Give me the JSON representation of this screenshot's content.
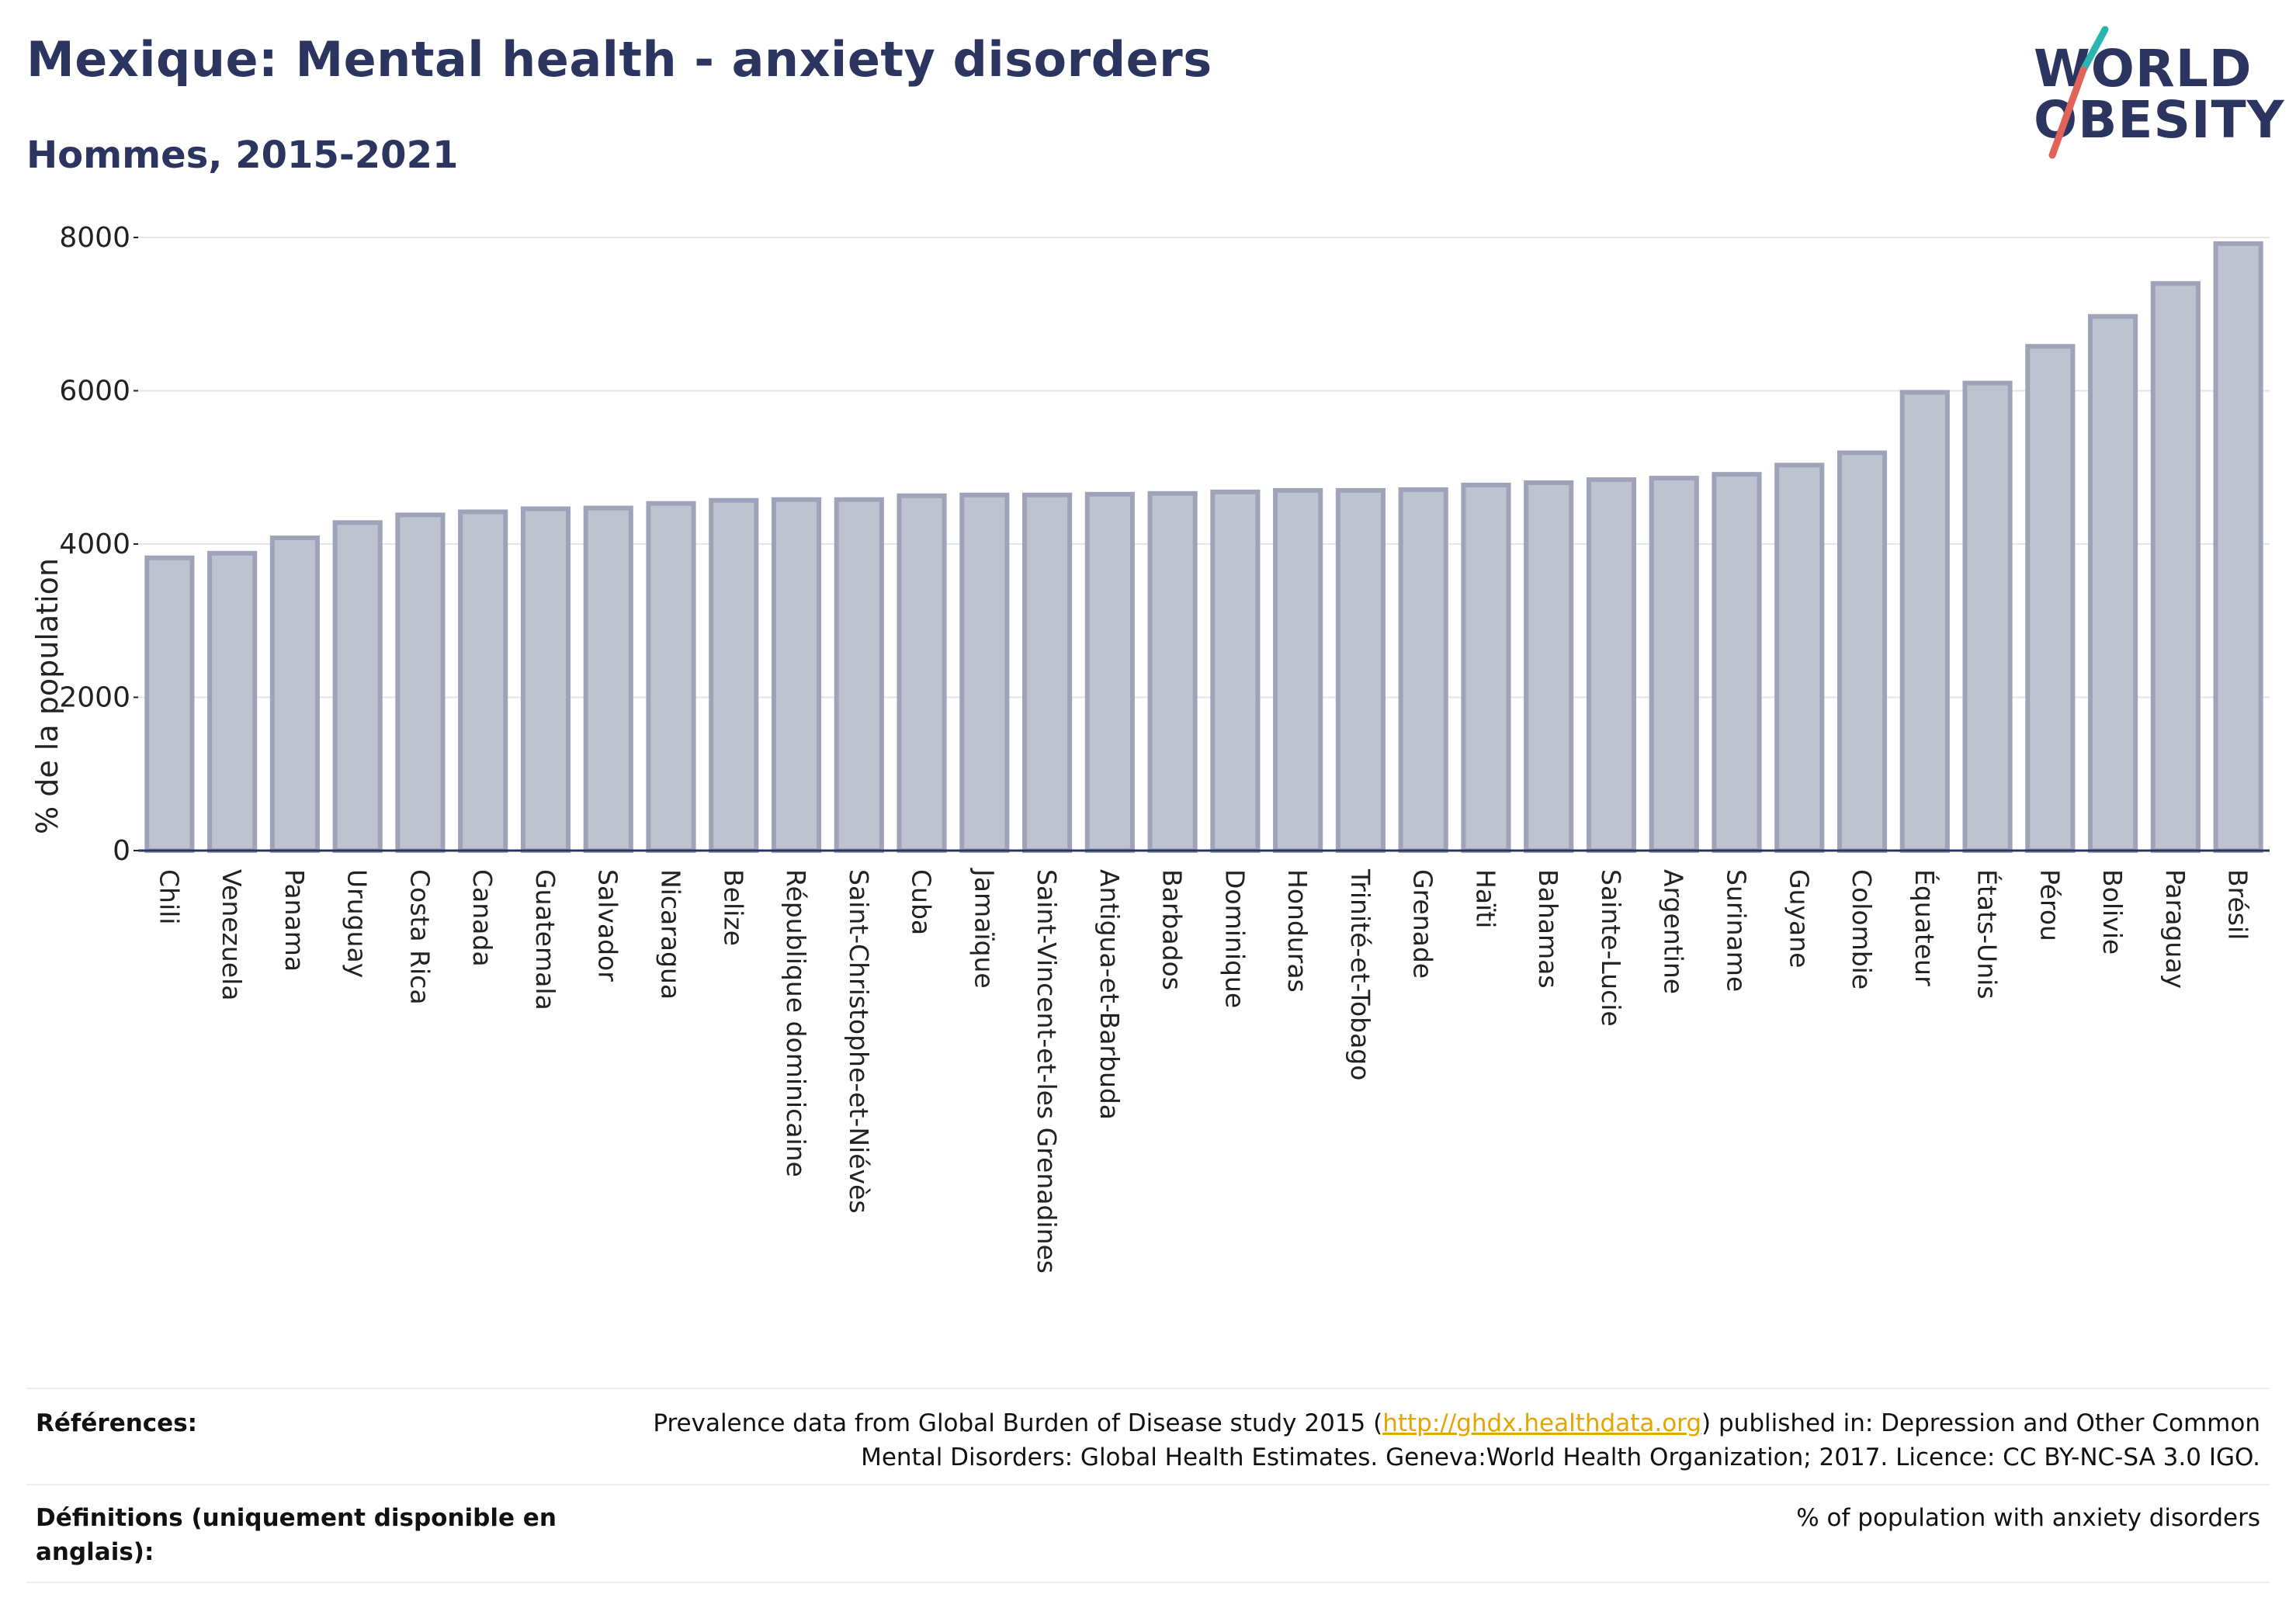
{
  "title": "Mexique: Mental health - anxiety disorders",
  "subtitle": "Hommes, 2015-2021",
  "logo": {
    "line1": "WORLD",
    "line2": "OBESITY",
    "colors": [
      "#2bb5b0",
      "#e0645a"
    ]
  },
  "chart_data": {
    "type": "bar",
    "ylabel": "% de la population",
    "ylim": [
      0,
      8000
    ],
    "yticks": [
      0,
      2000,
      4000,
      6000,
      8000
    ],
    "grid": true,
    "bar_color": "#bfc3d0",
    "bar_edge_color": "#9ea3b9",
    "categories": [
      "Chili",
      "Venezuela",
      "Panama",
      "Uruguay",
      "Costa Rica",
      "Canada",
      "Guatemala",
      "Salvador",
      "Nicaragua",
      "Belize",
      "République dominicaine",
      "Saint-Christophe-et-Niévès",
      "Cuba",
      "Jamaïque",
      "Saint-Vincent-et-les Grenadines",
      "Antigua-et-Barbuda",
      "Barbados",
      "Dominique",
      "Honduras",
      "Trinité-et-Tobago",
      "Grenade",
      "Haïti",
      "Bahamas",
      "Sainte-Lucie",
      "Argentine",
      "Suriname",
      "Guyane",
      "Colombie",
      "Équateur",
      "États-Unis",
      "Pérou",
      "Bolivie",
      "Paraguay",
      "Brésil"
    ],
    "values": [
      3820,
      3880,
      4080,
      4280,
      4380,
      4420,
      4460,
      4470,
      4530,
      4570,
      4580,
      4580,
      4630,
      4640,
      4640,
      4650,
      4660,
      4680,
      4700,
      4700,
      4710,
      4770,
      4800,
      4840,
      4860,
      4910,
      5030,
      5190,
      5980,
      6100,
      6580,
      6970,
      7400,
      7920
    ]
  },
  "footer": {
    "references_label": "Références:",
    "references_text_before": "Prevalence data from Global Burden of Disease study 2015 (",
    "references_link": "http://ghdx.healthdata.org",
    "references_text_after": ") published in: Depression and Other Common",
    "references_line2": "Mental Disorders: Global Health Estimates. Geneva:World Health Organization; 2017. Licence: CC BY-NC-SA 3.0 IGO.",
    "definitions_label_line1": "Définitions (uniquement disponible en",
    "definitions_label_line2": "anglais):",
    "definitions_text": "% of population with anxiety disorders"
  }
}
